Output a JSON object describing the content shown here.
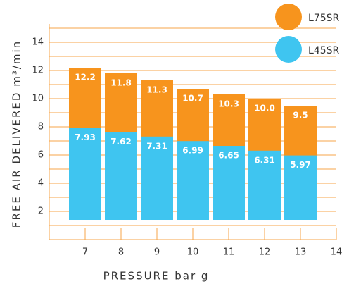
{
  "chart_data": {
    "type": "bar",
    "x_label": "PRESSURE bar g",
    "y_label": "FREE AIR DELIVERED m³/min",
    "x": [
      7,
      8,
      9,
      10,
      11,
      12,
      13
    ],
    "series": [
      {
        "name": "L75SR",
        "color": "#f7941d",
        "values": [
          12.2,
          11.8,
          11.3,
          10.7,
          10.3,
          10.0,
          9.5
        ],
        "value_labels": [
          "12.2",
          "11.8",
          "11.3",
          "10.7",
          "10.3",
          "10.0",
          "9.5"
        ]
      },
      {
        "name": "L45SR",
        "color": "#3fc5f0",
        "values": [
          7.93,
          7.62,
          7.31,
          6.99,
          6.65,
          6.31,
          5.97
        ]
      }
    ],
    "xlim": [
      6,
      14
    ],
    "xticks": [
      7,
      8,
      9,
      10,
      11,
      12,
      13,
      14
    ],
    "ylim": [
      0,
      15
    ],
    "yticks": [
      2,
      4,
      6,
      8,
      10,
      12,
      14
    ],
    "ygrid": [
      1,
      2,
      3,
      4,
      5,
      6,
      7,
      8,
      9,
      10,
      11,
      12,
      13,
      14,
      15
    ],
    "grid_color": "#f7a54a",
    "legend": "upper right"
  }
}
